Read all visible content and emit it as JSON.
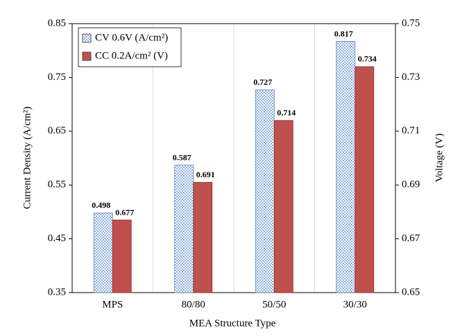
{
  "chart_data": {
    "type": "bar",
    "x_label": "MEA Structure Type",
    "y_label": "Current Density (A/cm²)",
    "y2_label": "Voltage (V)",
    "categories": [
      "MPS",
      "80/80",
      "50/50",
      "30/30"
    ],
    "series": [
      {
        "name": "CV 0.6V (A/cm²)",
        "color": "#8fb1e0",
        "values": [
          0.498,
          0.587,
          0.727,
          0.817
        ]
      },
      {
        "name": "CC 0.2A/cm² (V)",
        "color": "#c0504d",
        "axis": "y2",
        "values": [
          0.677,
          0.691,
          0.714,
          0.734
        ]
      }
    ],
    "ylim": [
      0.35,
      0.85
    ],
    "yticks": [
      0.35,
      0.45,
      0.55,
      0.65,
      0.75,
      0.85
    ],
    "y2lim": [
      0.65,
      0.75
    ],
    "y2ticks": [
      0.65,
      0.67,
      0.69,
      0.71,
      0.73,
      0.75
    ],
    "legend": "upper left"
  }
}
